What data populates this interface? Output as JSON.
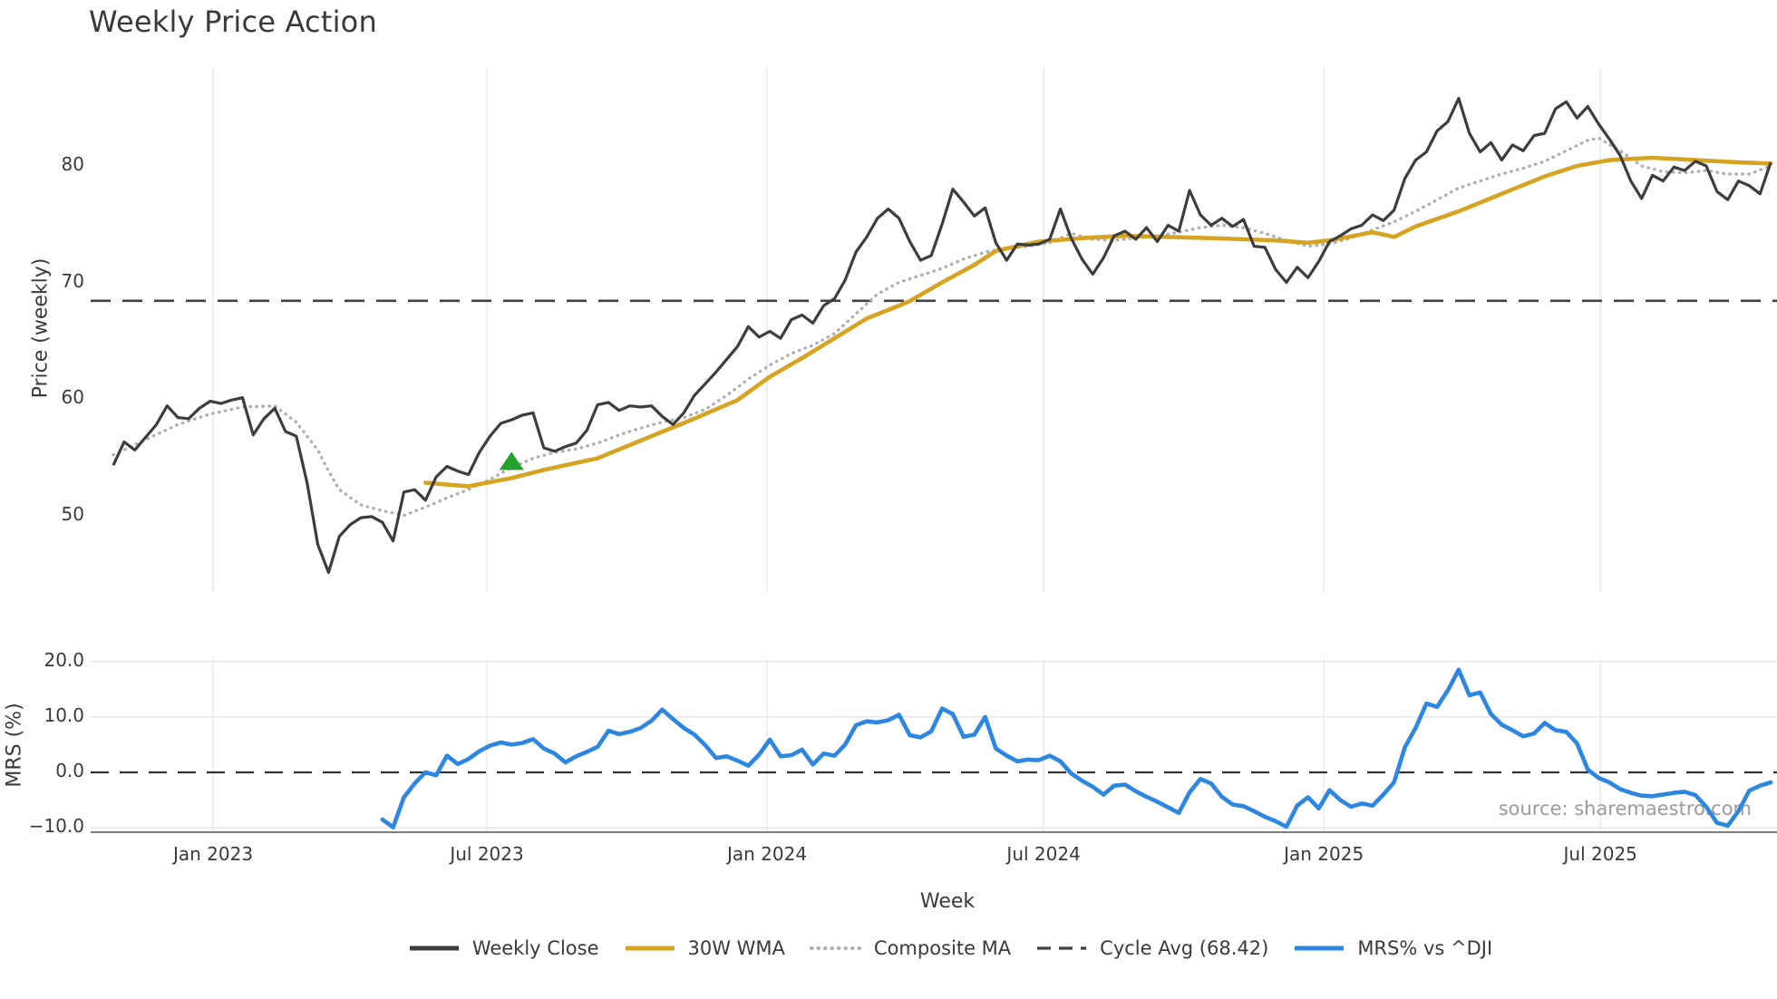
{
  "title": "Weekly Price Action",
  "source_note": "source: sharemaestro.com",
  "x_axis": {
    "label": "Week",
    "ticks": [
      {
        "label": "Jan 2023",
        "week": 9.27
      },
      {
        "label": "Jul 2023",
        "week": 34.71
      },
      {
        "label": "Jan 2024",
        "week": 60.74
      },
      {
        "label": "Jul 2024",
        "week": 86.44
      },
      {
        "label": "Jan 2025",
        "week": 112.47
      },
      {
        "label": "Jul 2025",
        "week": 138.17
      }
    ]
  },
  "axes": {
    "price": {
      "ylabel": "Price (weekly)",
      "ticks": [
        {
          "label": "80",
          "value": 80
        },
        {
          "label": "70",
          "value": 70
        },
        {
          "label": "60",
          "value": 60
        },
        {
          "label": "50",
          "value": 50
        }
      ]
    },
    "mrs": {
      "ylabel": "MRS (%)",
      "ticks": [
        {
          "label": "20.0",
          "value": 20
        },
        {
          "label": "10.0",
          "value": 10
        },
        {
          "label": "0.0",
          "value": 0
        },
        {
          "label": "−10.0",
          "value": -10
        }
      ]
    }
  },
  "legend": [
    {
      "label": "Weekly Close",
      "style": "solid",
      "color": "#3d3d3d"
    },
    {
      "label": "30W WMA",
      "style": "solid",
      "color": "#d7a422"
    },
    {
      "label": "Composite MA",
      "style": "dotted",
      "color": "#b0b0b0"
    },
    {
      "label": "Cycle Avg (68.42)",
      "style": "dashed",
      "color": "#414141"
    },
    {
      "label": "MRS% vs ^DJI",
      "style": "solid",
      "color": "#2d86e0"
    }
  ],
  "colors": {
    "weekly_close": "#3d3d3d",
    "wma": "#d7a422",
    "composite": "#b0b0b0",
    "cycle_avg": "#414141",
    "mrs_line": "#2d86e0",
    "buy_marker": "#22a12c",
    "grid_vertical": "#e9e9ef",
    "grid_horizontal": "#e5e5ea",
    "zero_line": "#333333",
    "spine": "#555555",
    "text": "#3a3a3a",
    "source_text": "#9b9b9b"
  },
  "chart_data": [
    {
      "type": "line",
      "panel": "price",
      "title": "Weekly Price Action",
      "ylabel": "Price (weekly)",
      "x_unit": "weeks, w0 = late Oct 2022, ~155 weeks to late Oct 2025",
      "start_week": 0,
      "ylim": [
        44,
        87
      ],
      "cycle_avg": 68.42,
      "weekly_close": [
        54.3,
        56.3,
        55.6,
        56.7,
        57.8,
        59.4,
        58.4,
        58.3,
        59.2,
        59.8,
        59.6,
        59.9,
        60.1,
        56.9,
        58.3,
        59.2,
        57.2,
        56.8,
        52.8,
        47.5,
        45.1,
        48.2,
        49.2,
        49.8,
        49.9,
        49.4,
        47.8,
        52.0,
        52.2,
        51.3,
        53.3,
        54.2,
        53.8,
        53.5,
        55.4,
        56.8,
        57.9,
        58.2,
        58.6,
        58.8,
        55.8,
        55.5,
        55.9,
        56.2,
        57.3,
        59.5,
        59.7,
        59.0,
        59.4,
        59.3,
        59.4,
        58.5,
        57.8,
        58.8,
        60.3,
        61.3,
        62.3,
        63.4,
        64.5,
        66.2,
        65.3,
        65.8,
        65.2,
        66.8,
        67.2,
        66.5,
        68.0,
        68.6,
        70.2,
        72.6,
        73.9,
        75.5,
        76.3,
        75.5,
        73.5,
        71.9,
        72.3,
        75.0,
        78.0,
        76.9,
        75.7,
        76.4,
        73.4,
        71.9,
        73.3,
        73.2,
        73.3,
        73.7,
        76.3,
        73.8,
        72.0,
        70.7,
        72.1,
        74.0,
        74.4,
        73.7,
        74.7,
        73.5,
        74.9,
        74.4,
        77.9,
        75.8,
        74.9,
        75.5,
        74.8,
        75.4,
        73.1,
        73.0,
        71.1,
        70.0,
        71.3,
        70.4,
        71.8,
        73.5,
        74.0,
        74.6,
        74.9,
        75.8,
        75.3,
        76.2,
        78.9,
        80.5,
        81.2,
        83.0,
        83.8,
        85.8,
        82.8,
        81.2,
        82.0,
        80.5,
        81.8,
        81.3,
        82.6,
        82.8,
        84.9,
        85.5,
        84.1,
        85.1,
        83.6,
        82.3,
        80.9,
        78.7,
        77.2,
        79.2,
        78.7,
        79.9,
        79.6,
        80.4,
        80.0,
        77.8,
        77.1,
        78.7,
        78.3,
        77.6,
        80.3
      ],
      "wma_30w_anchors": [
        [
          29,
          52.8
        ],
        [
          33,
          52.5
        ],
        [
          37,
          53.2
        ],
        [
          40,
          53.9
        ],
        [
          45,
          54.9
        ],
        [
          50,
          56.8
        ],
        [
          54,
          58.3
        ],
        [
          58,
          59.9
        ],
        [
          61,
          61.9
        ],
        [
          64,
          63.5
        ],
        [
          67,
          65.2
        ],
        [
          70,
          66.9
        ],
        [
          73,
          68.0
        ],
        [
          74,
          68.4
        ],
        [
          77,
          70.0
        ],
        [
          80,
          71.5
        ],
        [
          82,
          72.7
        ],
        [
          86,
          73.5
        ],
        [
          90,
          73.8
        ],
        [
          94,
          74.0
        ],
        [
          98,
          73.9
        ],
        [
          102,
          73.8
        ],
        [
          108,
          73.6
        ],
        [
          111,
          73.4
        ],
        [
          113,
          73.6
        ],
        [
          117,
          74.3
        ],
        [
          119,
          73.9
        ],
        [
          121,
          74.8
        ],
        [
          125,
          76.1
        ],
        [
          129,
          77.6
        ],
        [
          133,
          79.1
        ],
        [
          136,
          80.0
        ],
        [
          139,
          80.5
        ],
        [
          143,
          80.7
        ],
        [
          147,
          80.5
        ],
        [
          151,
          80.3
        ],
        [
          154,
          80.2
        ]
      ],
      "composite_ma_anchors": [
        [
          0,
          55.2
        ],
        [
          3,
          56.5
        ],
        [
          6,
          57.8
        ],
        [
          9,
          58.7
        ],
        [
          12,
          59.3
        ],
        [
          15,
          59.4
        ],
        [
          17,
          58.0
        ],
        [
          19,
          55.6
        ],
        [
          20,
          53.8
        ],
        [
          21,
          52.2
        ],
        [
          23,
          50.9
        ],
        [
          25,
          50.4
        ],
        [
          27,
          50.0
        ],
        [
          29,
          50.7
        ],
        [
          31,
          51.5
        ],
        [
          33,
          52.2
        ],
        [
          35,
          53.1
        ],
        [
          37,
          54.1
        ],
        [
          39,
          54.9
        ],
        [
          41,
          55.4
        ],
        [
          43,
          55.7
        ],
        [
          45,
          56.2
        ],
        [
          47,
          56.9
        ],
        [
          49,
          57.5
        ],
        [
          51,
          58.0
        ],
        [
          53,
          58.4
        ],
        [
          55,
          59.1
        ],
        [
          57,
          60.3
        ],
        [
          59,
          61.7
        ],
        [
          61,
          62.9
        ],
        [
          63,
          63.9
        ],
        [
          65,
          64.6
        ],
        [
          67,
          65.6
        ],
        [
          69,
          67.3
        ],
        [
          71,
          69.0
        ],
        [
          73,
          70.0
        ],
        [
          75,
          70.6
        ],
        [
          77,
          71.2
        ],
        [
          79,
          72.0
        ],
        [
          81,
          72.6
        ],
        [
          83,
          72.9
        ],
        [
          85,
          73.1
        ],
        [
          87,
          73.4
        ],
        [
          89,
          74.2
        ],
        [
          91,
          73.7
        ],
        [
          93,
          73.6
        ],
        [
          95,
          73.8
        ],
        [
          97,
          74.0
        ],
        [
          99,
          74.3
        ],
        [
          101,
          74.7
        ],
        [
          103,
          74.9
        ],
        [
          105,
          74.7
        ],
        [
          107,
          74.2
        ],
        [
          109,
          73.6
        ],
        [
          111,
          73.1
        ],
        [
          113,
          73.3
        ],
        [
          115,
          73.8
        ],
        [
          117,
          74.5
        ],
        [
          119,
          75.2
        ],
        [
          121,
          76.1
        ],
        [
          123,
          77.1
        ],
        [
          125,
          78.1
        ],
        [
          127,
          78.7
        ],
        [
          129,
          79.3
        ],
        [
          131,
          79.8
        ],
        [
          133,
          80.4
        ],
        [
          135,
          81.3
        ],
        [
          137,
          82.2
        ],
        [
          138,
          82.4
        ],
        [
          140,
          81.3
        ],
        [
          142,
          80.0
        ],
        [
          144,
          79.5
        ],
        [
          146,
          79.4
        ],
        [
          148,
          79.6
        ],
        [
          150,
          79.3
        ],
        [
          152,
          79.3
        ],
        [
          154,
          80.0
        ]
      ],
      "buy_marker": {
        "week": 37,
        "value": 54.6,
        "shape": "triangle-up",
        "color": "#22a12c"
      }
    },
    {
      "type": "line",
      "panel": "mrs",
      "ylabel": "MRS (%)",
      "xlabel": "Week",
      "start_week": 25,
      "ylim": [
        -11,
        21
      ],
      "zero_line": 0,
      "mrs_pct_vs_dji": [
        -8.5,
        -9.9,
        -4.5,
        -2.0,
        0.0,
        -0.5,
        3.0,
        1.5,
        2.4,
        3.8,
        4.8,
        5.4,
        5.0,
        5.3,
        6.0,
        4.3,
        3.4,
        1.8,
        2.9,
        3.7,
        4.6,
        7.5,
        6.9,
        7.3,
        8.0,
        9.3,
        11.3,
        9.6,
        8.0,
        6.8,
        4.9,
        2.6,
        2.9,
        2.1,
        1.2,
        3.2,
        5.9,
        2.9,
        3.1,
        4.1,
        1.4,
        3.4,
        3.0,
        5.0,
        8.5,
        9.2,
        9.0,
        9.4,
        10.4,
        6.7,
        6.3,
        7.4,
        11.5,
        10.5,
        6.4,
        6.8,
        10.0,
        4.3,
        3.0,
        2.0,
        2.3,
        2.2,
        3.0,
        2.0,
        -0.2,
        -1.5,
        -2.6,
        -4.0,
        -2.4,
        -2.2,
        -3.4,
        -4.4,
        -5.3,
        -6.3,
        -7.3,
        -3.6,
        -1.2,
        -2.0,
        -4.4,
        -5.8,
        -6.1,
        -7.0,
        -8.0,
        -8.8,
        -9.8,
        -6.0,
        -4.5,
        -6.5,
        -3.2,
        -5.0,
        -6.2,
        -5.6,
        -6.0,
        -4.0,
        -1.8,
        4.5,
        8.0,
        12.4,
        11.8,
        14.8,
        18.5,
        13.9,
        14.4,
        10.5,
        8.6,
        7.6,
        6.5,
        7.0,
        8.9,
        7.6,
        7.3,
        5.2,
        0.5,
        -1.0,
        -1.8,
        -3.0,
        -3.7,
        -4.2,
        -4.3,
        -4.0,
        -3.7,
        -3.5,
        -4.1,
        -6.2,
        -9.1,
        -9.6,
        -7.0,
        -3.3,
        -2.4,
        -1.8
      ]
    }
  ]
}
